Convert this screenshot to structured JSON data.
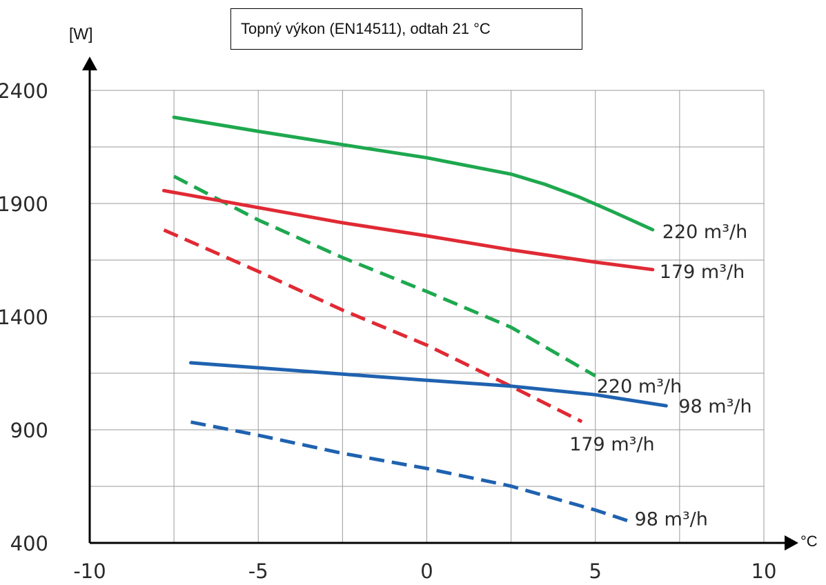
{
  "chart_data": {
    "type": "line",
    "title": "Topný výkon (EN14511), odtah 21 °C",
    "xlabel": "°C",
    "ylabel": "[W]",
    "xlim": [
      -10,
      10
    ],
    "ylim": [
      400,
      2400
    ],
    "xticks": [
      -10,
      -5,
      0,
      5,
      10
    ],
    "yticks": [
      400,
      900,
      1400,
      1900,
      2400
    ],
    "x_tick_labels": [
      "-10",
      "-5",
      "0",
      "5",
      "10"
    ],
    "y_tick_labels": [
      "400",
      "900",
      "1400",
      "1900",
      "2400"
    ],
    "grid": true,
    "series": [
      {
        "name": "220 m³/h",
        "style": "solid",
        "color": "#1ea84f",
        "x": [
          -7.5,
          -5,
          -2.5,
          0,
          2.5,
          3.5,
          4.5,
          5.5,
          6.7
        ],
        "y": [
          2281,
          2219,
          2160,
          2102,
          2030,
          1985,
          1930,
          1865,
          1784
        ]
      },
      {
        "name": "220 m³/h",
        "style": "dashed",
        "color": "#1ea84f",
        "x": [
          -7.5,
          -5,
          -2.5,
          0,
          2.5,
          5
        ],
        "y": [
          2020,
          1827,
          1661,
          1511,
          1353,
          1138
        ]
      },
      {
        "name": "179 m³/h",
        "style": "solid",
        "color": "#e02a34",
        "x": [
          -7.8,
          -5,
          -2.5,
          0,
          2.5,
          5,
          6.7
        ],
        "y": [
          1957,
          1882,
          1815,
          1757,
          1695,
          1641,
          1608
        ]
      },
      {
        "name": "179 m³/h",
        "style": "dashed",
        "color": "#e02a34",
        "x": [
          -7.8,
          -5,
          -2.5,
          0,
          2.5,
          4.6
        ],
        "y": [
          1783,
          1600,
          1429,
          1274,
          1092,
          936
        ]
      },
      {
        "name": "98 m³/h",
        "style": "solid",
        "color": "#1f62b0",
        "x": [
          -7,
          -5,
          -2.5,
          0,
          2.5,
          5,
          7.1
        ],
        "y": [
          1196,
          1174,
          1146,
          1119,
          1093,
          1055,
          1006
        ]
      },
      {
        "name": "98 m³/h",
        "style": "dashed",
        "color": "#1f62b0",
        "x": [
          -7,
          -5,
          -2.5,
          0,
          2.5,
          5,
          6
        ],
        "y": [
          934,
          876,
          796,
          729,
          651,
          545,
          496
        ]
      }
    ],
    "annotations": [
      {
        "text": "220 m³/h",
        "series": 0
      },
      {
        "text": "220 m³/h",
        "series": 1
      },
      {
        "text": "179 m³/h",
        "series": 2
      },
      {
        "text": "179 m³/h",
        "series": 3
      },
      {
        "text": "98 m³/h",
        "series": 4
      },
      {
        "text": "98 m³/h",
        "series": 5
      }
    ]
  }
}
